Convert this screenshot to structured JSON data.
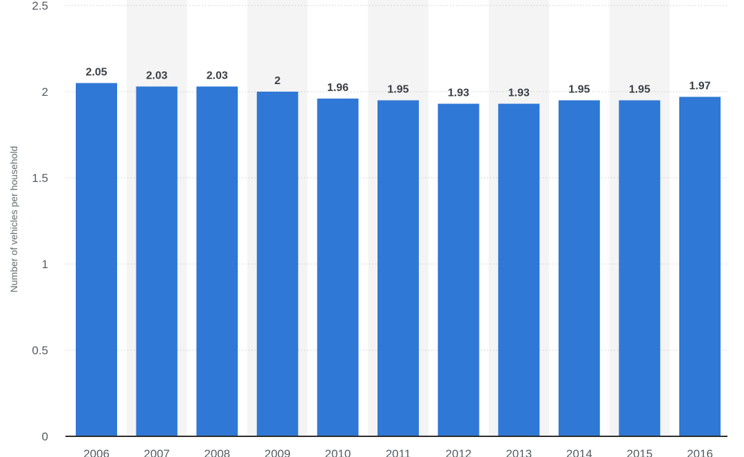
{
  "chart_data": {
    "type": "bar",
    "title": "",
    "xlabel": "",
    "ylabel": "Number of vehicles per household",
    "categories": [
      "2006",
      "2007",
      "2008",
      "2009",
      "2010",
      "2011",
      "2012",
      "2013",
      "2014",
      "2015",
      "2016"
    ],
    "values": [
      2.05,
      2.03,
      2.03,
      2,
      1.96,
      1.95,
      1.93,
      1.93,
      1.95,
      1.95,
      1.97
    ],
    "value_labels": [
      "2.05",
      "2.03",
      "2.03",
      "2",
      "1.96",
      "1.95",
      "1.93",
      "1.93",
      "1.95",
      "1.95",
      "1.97"
    ],
    "ylim": [
      0,
      2.5
    ],
    "yticks": [
      0,
      0.5,
      1,
      1.5,
      2,
      2.5
    ],
    "ytick_labels": [
      "0",
      "0.5",
      "1",
      "1.5",
      "2",
      "2.5"
    ],
    "grid": true,
    "legend": "none",
    "colors": {
      "bar": "#2f78d6",
      "band": "#f4f4f4",
      "grid": "#c9c9c9",
      "axis": "#2b2b2b"
    }
  }
}
